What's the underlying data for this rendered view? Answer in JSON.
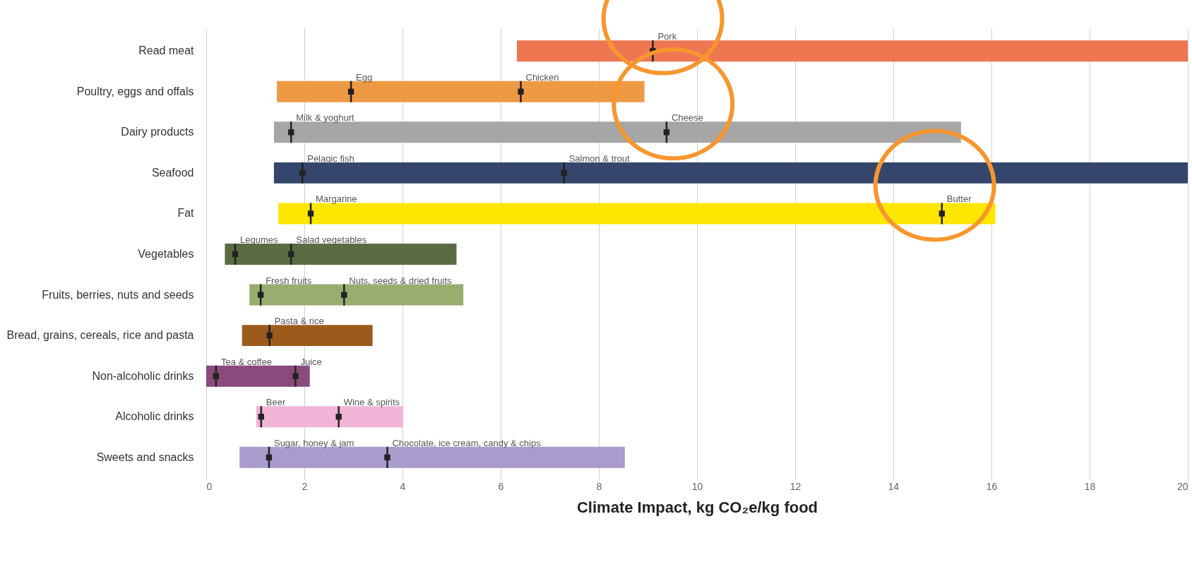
{
  "chart_data": {
    "type": "bar",
    "orientation": "horizontal",
    "xlabel": "Climate Impact, kg CO₂e/kg food",
    "categories": [
      "Read meat",
      "Poultry, eggs and offals",
      "Dairy products",
      "Seafood",
      "Fat",
      "Vegetables",
      "Fruits, berries, nuts and seeds",
      "Bread, grains, cereals, rice and pasta",
      "Non-alcoholic drinks",
      "Alcoholic drinks",
      "Sweets and snacks"
    ],
    "base": [
      6.33,
      1.44,
      1.38,
      1.38,
      1.47,
      0.38,
      0.88,
      0.73,
      0,
      1.02,
      0.68
    ],
    "values": [
      13.67,
      7.49,
      14.0,
      18.62,
      14.61,
      4.72,
      4.36,
      2.66,
      2.11,
      2.99,
      7.85
    ],
    "colors": [
      "#ee7752",
      "#ee9a45",
      "#a6a6a6",
      "#34466b",
      "#ffe600",
      "#5b6c45",
      "#98ae6e",
      "#9c5b1d",
      "#8a4a7c",
      "#f0b4d6",
      "#a99bcb"
    ],
    "series": [
      {
        "type": "scatter",
        "color": "#222222",
        "x": [
          "Read meat",
          "Poultry, eggs and offals",
          "Poultry, eggs and offals",
          "Dairy products",
          "Dairy products",
          "Seafood",
          "Seafood",
          "Fat",
          "Fat",
          "Vegetables",
          "Vegetables",
          "Fruits, berries, nuts and seeds",
          "Fruits, berries, nuts and seeds",
          "Bread, grains, cereals, rice and pasta",
          "Non-alcoholic drinks",
          "Non-alcoholic drinks",
          "Alcoholic drinks",
          "Alcoholic drinks",
          "Sweets and snacks",
          "Sweets and snacks"
        ],
        "values": [
          9.1,
          2.95,
          6.41,
          1.73,
          9.38,
          1.96,
          7.29,
          2.13,
          14.99,
          0.59,
          1.73,
          1.11,
          2.81,
          1.29,
          0.2,
          1.82,
          1.12,
          2.7,
          1.28,
          3.69
        ],
        "value_labels": [
          "Pork",
          "Egg",
          "Chicken",
          "Milk & yoghurt",
          "Cheese",
          "Pelagic fish",
          "Salmon & trout",
          "Margarine",
          "Butter",
          "Legumes",
          "Salad vegetables",
          "Fresh fruits",
          "Nuts, seeds & dried fruits",
          "Pasta & rice",
          "Tea & coffee",
          "Juice",
          "Beer",
          "Wine & spirits",
          "Sugar, honey  & jam",
          "Chocolate, ice cream,  candy &  chips"
        ]
      }
    ],
    "xlim": [
      0,
      20
    ],
    "xticks": [
      0,
      2,
      4,
      6,
      8,
      10,
      12,
      14,
      16,
      18,
      20
    ],
    "grid": "x"
  }
}
